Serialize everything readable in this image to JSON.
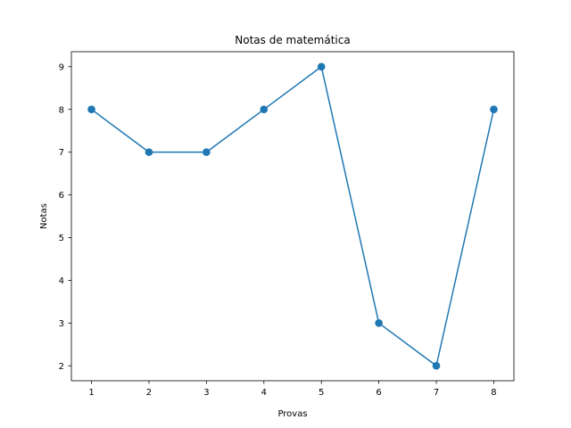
{
  "chart_data": {
    "type": "line",
    "title": "Notas de matemática",
    "xlabel": "Provas",
    "ylabel": "Notas",
    "x": [
      1,
      2,
      3,
      4,
      5,
      6,
      7,
      8
    ],
    "series": [
      {
        "values": [
          8,
          7,
          7,
          8,
          9,
          3,
          2,
          8
        ],
        "color": "#1f77b4",
        "marker": "circle"
      }
    ],
    "xlim": [
      0.65,
      8.35
    ],
    "ylim": [
      1.65,
      9.35
    ],
    "xticks": [
      1,
      2,
      3,
      4,
      5,
      6,
      7,
      8
    ],
    "yticks": [
      2,
      3,
      4,
      5,
      6,
      7,
      8,
      9
    ],
    "grid": false,
    "legend": false
  }
}
